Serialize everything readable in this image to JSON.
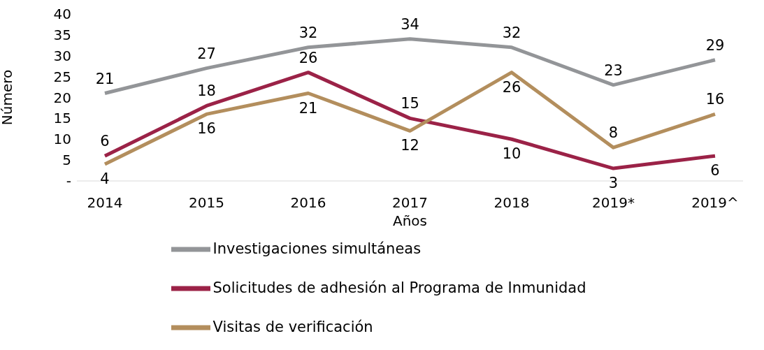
{
  "chart_data": {
    "type": "line",
    "xlabel": "Años",
    "ylabel": "Número",
    "categories": [
      "2014",
      "2015",
      "2016",
      "2017",
      "2018",
      "2019*",
      "2019^"
    ],
    "series": [
      {
        "name": "Investigaciones simultáneas",
        "color": "#939598",
        "values": [
          21,
          27,
          32,
          34,
          32,
          23,
          29
        ]
      },
      {
        "name": "Solicitudes de adhesión al Programa de Inmunidad",
        "color": "#9b2247",
        "values": [
          6,
          18,
          26,
          15,
          10,
          3,
          6
        ]
      },
      {
        "name": "Visitas de verificación",
        "color": "#b38e5d",
        "values": [
          4,
          16,
          21,
          12,
          26,
          8,
          16
        ]
      }
    ],
    "ylim": [
      0,
      40
    ],
    "yticks": [
      {
        "value": 0,
        "label": "-"
      },
      5,
      10,
      15,
      20,
      25,
      30,
      35,
      40
    ],
    "grid": false,
    "legend": "bottom",
    "marker": "none",
    "line_style": "solid",
    "data_labels": true
  }
}
